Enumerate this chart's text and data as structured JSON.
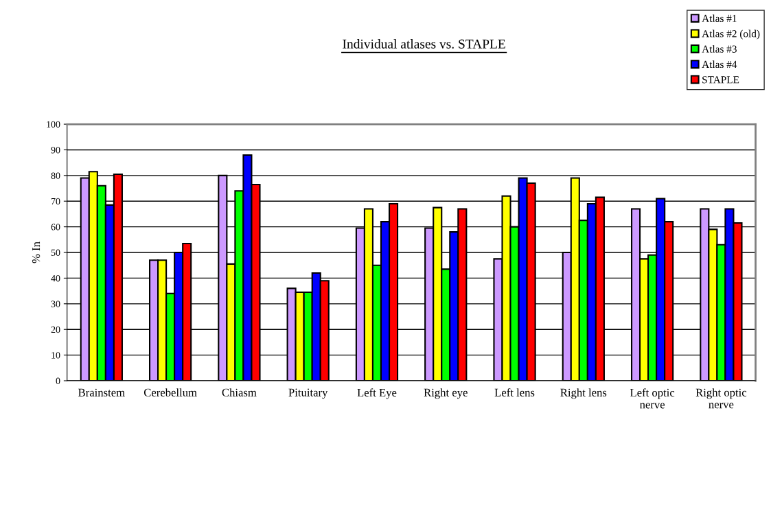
{
  "chart_data": {
    "type": "bar",
    "title": "Individual atlases vs. STAPLE",
    "ylabel": "% In",
    "categories": [
      "Brainstem",
      "Cerebellum",
      "Chiasm",
      "Pituitary",
      "Left Eye",
      "Right eye",
      "Left lens",
      "Right lens",
      "Left optic\nnerve",
      "Right optic\nnerve"
    ],
    "series": [
      {
        "name": "Atlas #1",
        "color": "#cc99ff",
        "values": [
          79,
          47,
          80,
          36,
          59.5,
          59.5,
          47.5,
          50,
          67,
          67
        ]
      },
      {
        "name": "Atlas #2 (old)",
        "color": "#ffff00",
        "values": [
          81.5,
          47,
          45.5,
          34.5,
          67,
          67.5,
          72,
          79,
          47.5,
          59
        ]
      },
      {
        "name": "Atlas #3",
        "color": "#00ff00",
        "values": [
          76,
          34,
          74,
          34.5,
          45,
          43.5,
          60,
          62.5,
          49,
          53
        ]
      },
      {
        "name": "Atlas #4",
        "color": "#0000ff",
        "values": [
          68.5,
          50,
          88,
          42,
          62,
          58,
          79,
          69,
          71,
          67
        ]
      },
      {
        "name": "STAPLE",
        "color": "#ff0000",
        "values": [
          80.5,
          53.5,
          76.5,
          39,
          69,
          67,
          77,
          71.5,
          62,
          61.5
        ]
      }
    ],
    "ylim": [
      0,
      100
    ],
    "yticks": [
      0,
      10,
      20,
      30,
      40,
      50,
      60,
      70,
      80,
      90,
      100
    ],
    "grid": "y",
    "legend": "top right"
  }
}
